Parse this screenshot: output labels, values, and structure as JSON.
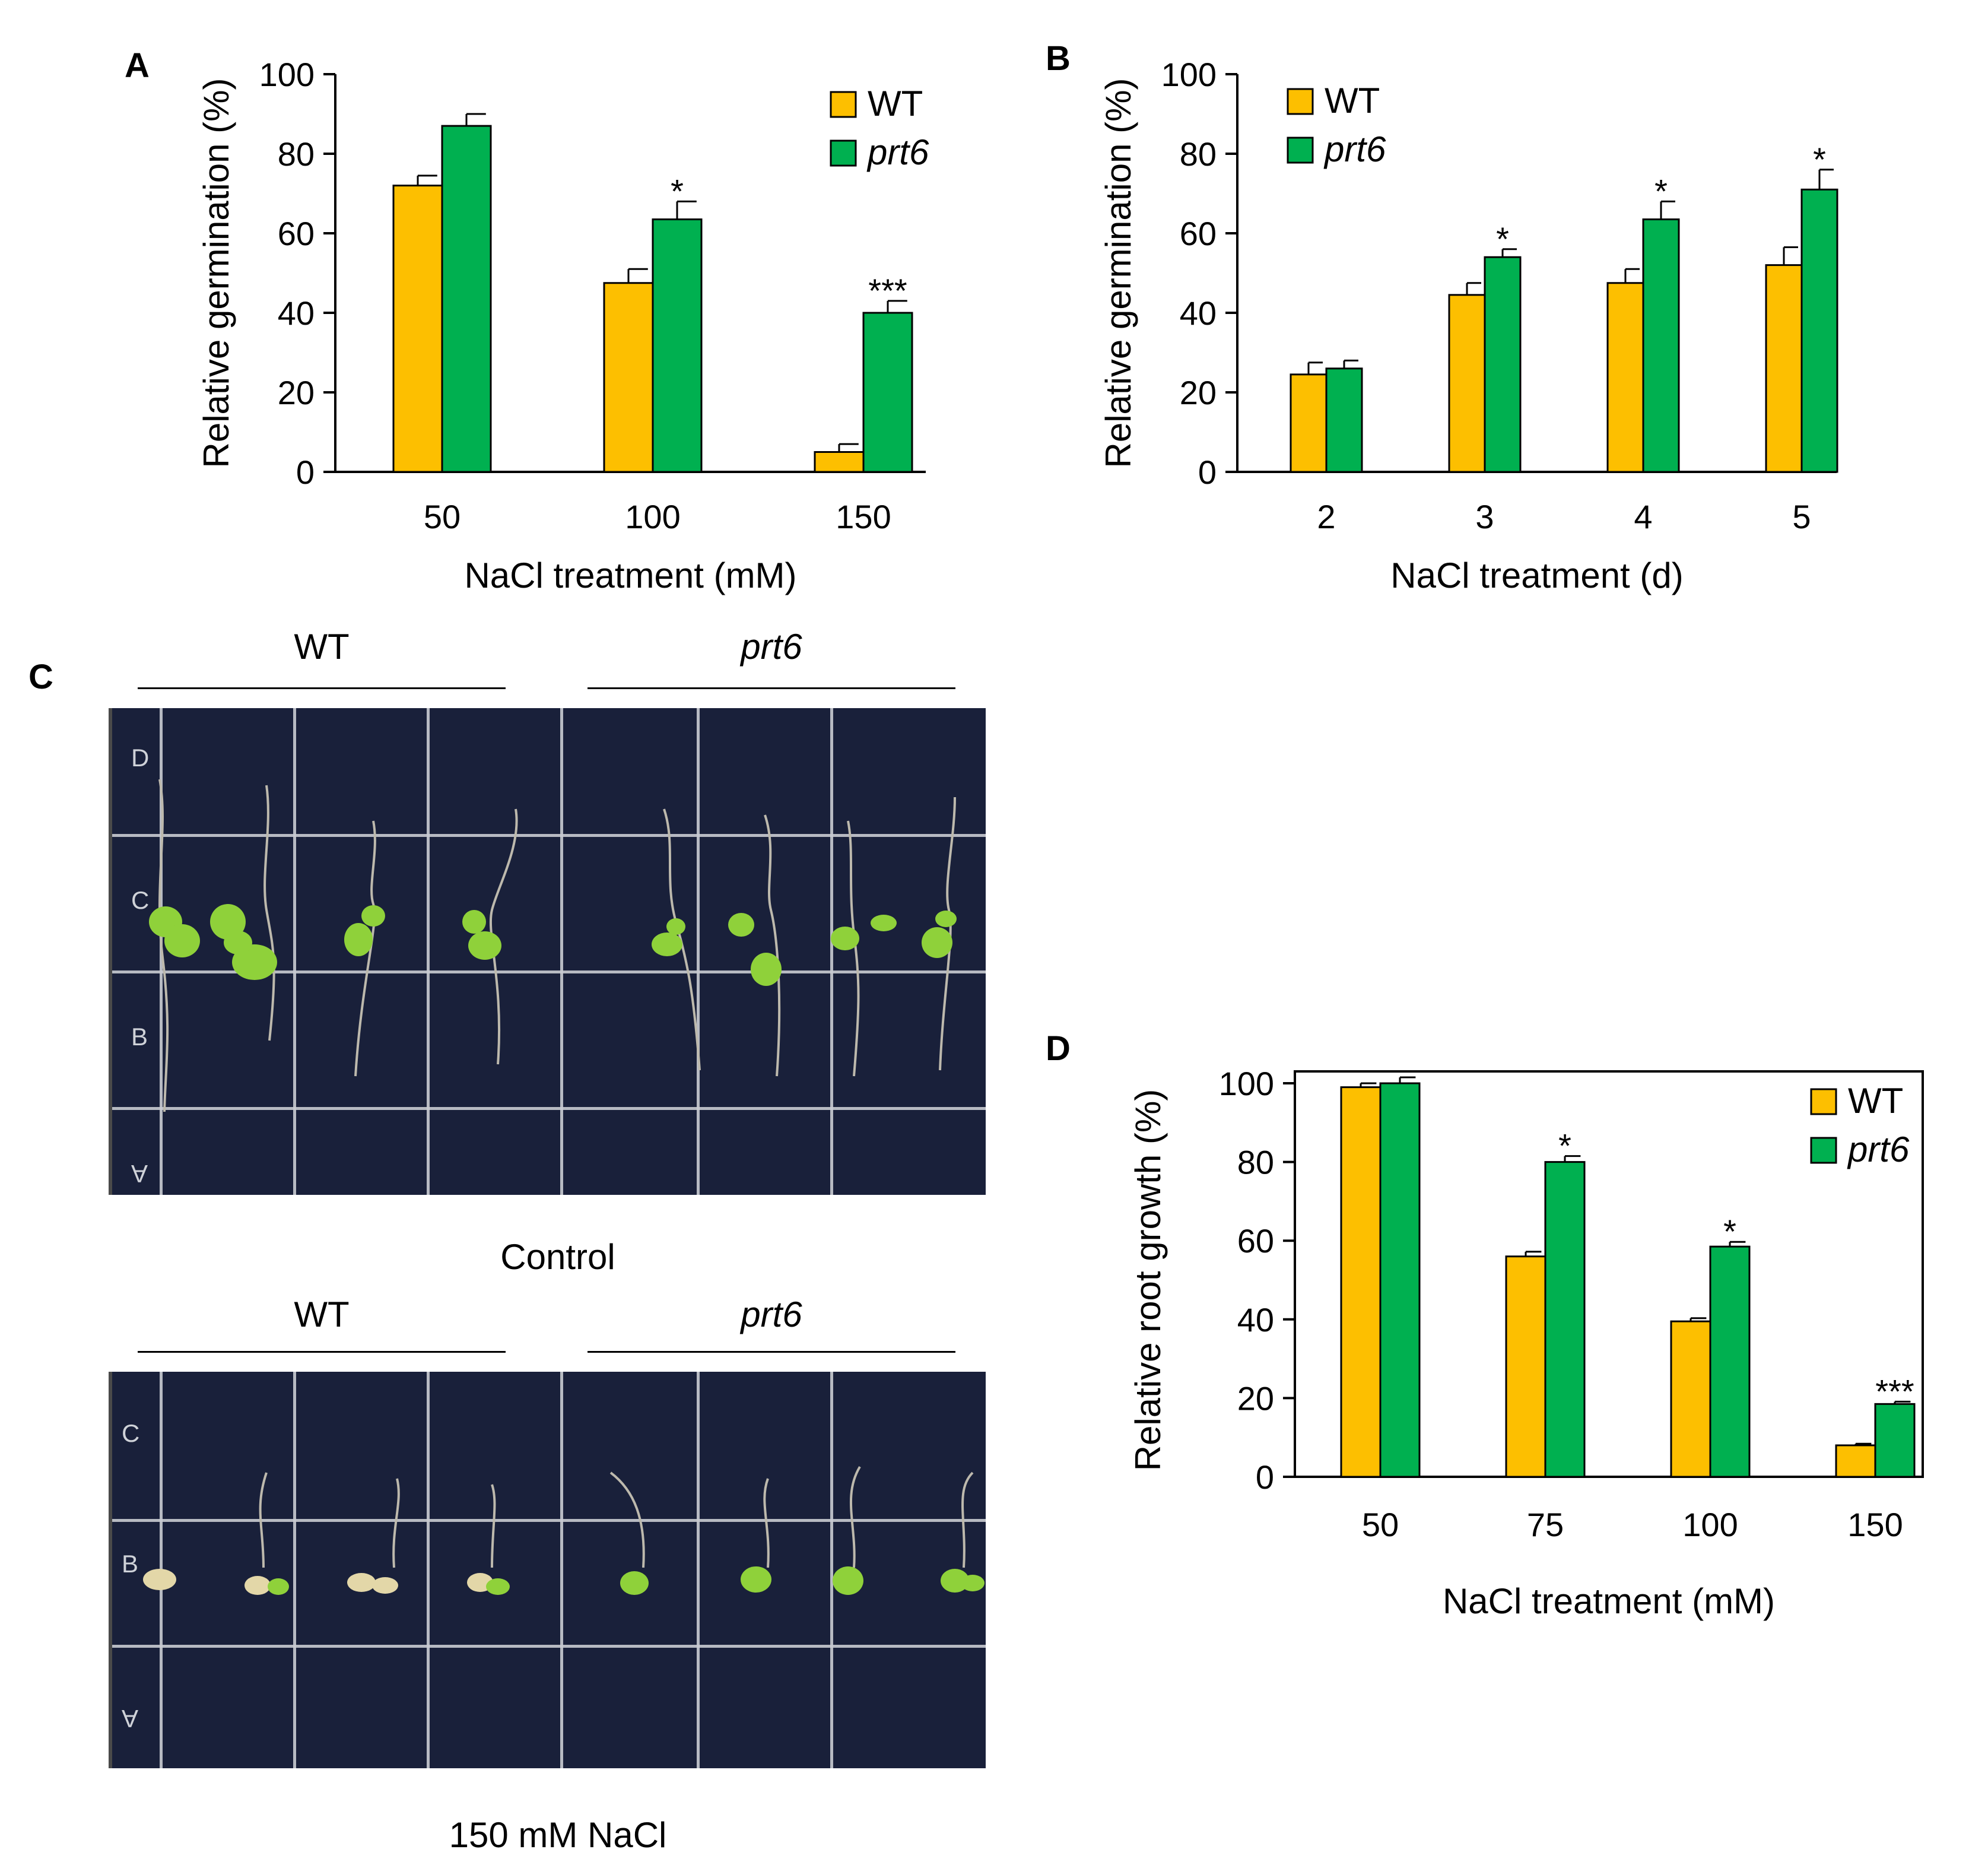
{
  "colors": {
    "wt": "#fdbf00",
    "prt6": "#00b050",
    "photo_bg": "#19203a"
  },
  "panels": {
    "A": "A",
    "B": "B",
    "C": "C",
    "D": "D"
  },
  "photo_panel": {
    "control": {
      "group_wt": "WT",
      "group_prt6": "prt6",
      "caption": "Control",
      "plate_letters": [
        "D",
        "C",
        "B",
        "A"
      ]
    },
    "salt": {
      "group_wt": "WT",
      "group_prt6": "prt6",
      "caption": "150 mM NaCl",
      "plate_letters": [
        "C",
        "B",
        "A"
      ]
    }
  },
  "chart_data": [
    {
      "id": "A",
      "type": "bar",
      "categories": [
        "50",
        "100",
        "150"
      ],
      "series": [
        {
          "name": "WT",
          "values": [
            72,
            47.5,
            5
          ],
          "errors": [
            2.5,
            3.5,
            2
          ]
        },
        {
          "name": "prt6",
          "values": [
            87,
            63.5,
            40
          ],
          "errors": [
            3,
            4.5,
            3
          ]
        }
      ],
      "significance": [
        "",
        "*",
        "***"
      ],
      "xlabel": "NaCl treatment (mM)",
      "ylabel": "Relative germination (%)",
      "ylim": [
        0,
        100
      ],
      "yticks": [
        0,
        20,
        40,
        60,
        80,
        100
      ],
      "grid": false,
      "legend": "top-right"
    },
    {
      "id": "B",
      "type": "bar",
      "categories": [
        "2",
        "3",
        "4",
        "5"
      ],
      "series": [
        {
          "name": "WT",
          "values": [
            24.5,
            44.5,
            47.5,
            52
          ],
          "errors": [
            3,
            3,
            3.5,
            4.5
          ]
        },
        {
          "name": "prt6",
          "values": [
            26,
            54,
            63.5,
            71
          ],
          "errors": [
            2,
            2,
            4.5,
            5
          ]
        }
      ],
      "significance": [
        "",
        "*",
        "*",
        "*"
      ],
      "xlabel": "NaCl treatment (d)",
      "ylabel": "Relative germination (%)",
      "ylim": [
        0,
        100
      ],
      "yticks": [
        0,
        20,
        40,
        60,
        80,
        100
      ],
      "grid": false,
      "legend": "top-left"
    },
    {
      "id": "D",
      "type": "bar",
      "categories": [
        "50",
        "75",
        "100",
        "150"
      ],
      "series": [
        {
          "name": "WT",
          "values": [
            99,
            56,
            39.5,
            8
          ],
          "errors": [
            1,
            1.2,
            0.8,
            0.4
          ]
        },
        {
          "name": "prt6",
          "values": [
            100,
            80,
            58.5,
            18.5
          ],
          "errors": [
            1.5,
            1.5,
            1.2,
            0.6
          ]
        }
      ],
      "significance": [
        "",
        "*",
        "*",
        "***"
      ],
      "xlabel": "NaCl treatment (mM)",
      "ylabel": "Relative root growth (%)",
      "ylim": [
        0,
        100
      ],
      "yticks": [
        0,
        20,
        40,
        60,
        80,
        100
      ],
      "grid": false,
      "legend": "top-right",
      "boxed": true
    }
  ]
}
